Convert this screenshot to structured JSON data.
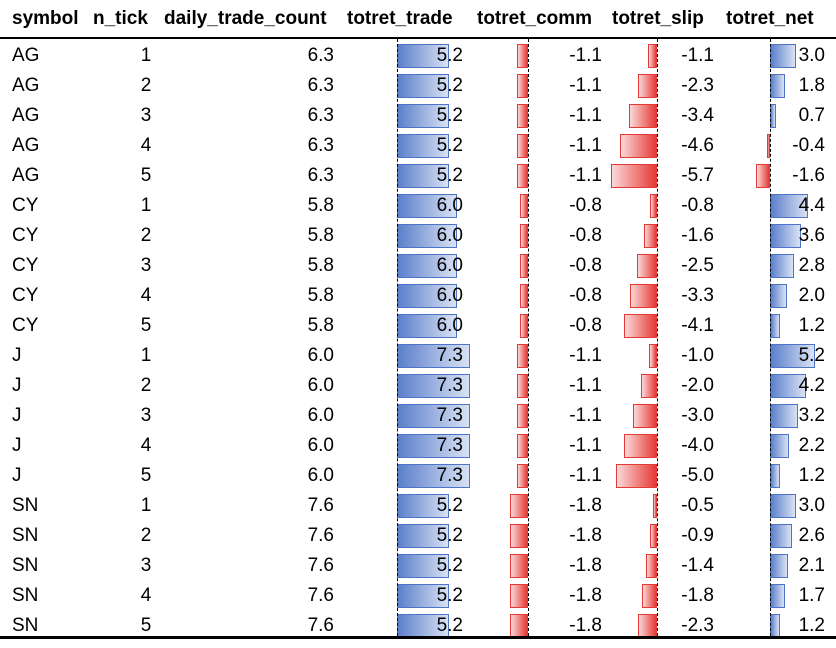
{
  "columns": [
    "symbol",
    "n_tick",
    "daily_trade_count",
    "totret_trade",
    "totret_comm",
    "totret_slip",
    "totret_net"
  ],
  "colors": {
    "positive_bar": "#5b7fcb",
    "negative_bar": "#e53935"
  },
  "chart_data": {
    "type": "table",
    "columns": [
      "symbol",
      "n_tick",
      "daily_trade_count",
      "totret_trade",
      "totret_comm",
      "totret_slip",
      "totret_net"
    ],
    "databar_columns": [
      "totret_trade",
      "totret_comm",
      "totret_slip",
      "totret_net"
    ],
    "rows": [
      {
        "symbol": "AG",
        "n_tick": 1,
        "daily_trade_count": "6.3",
        "totret_trade": "5.2",
        "totret_comm": "-1.1",
        "totret_slip": "-1.1",
        "totret_net": "3.0"
      },
      {
        "symbol": "AG",
        "n_tick": 2,
        "daily_trade_count": "6.3",
        "totret_trade": "5.2",
        "totret_comm": "-1.1",
        "totret_slip": "-2.3",
        "totret_net": "1.8"
      },
      {
        "symbol": "AG",
        "n_tick": 3,
        "daily_trade_count": "6.3",
        "totret_trade": "5.2",
        "totret_comm": "-1.1",
        "totret_slip": "-3.4",
        "totret_net": "0.7"
      },
      {
        "symbol": "AG",
        "n_tick": 4,
        "daily_trade_count": "6.3",
        "totret_trade": "5.2",
        "totret_comm": "-1.1",
        "totret_slip": "-4.6",
        "totret_net": "-0.4"
      },
      {
        "symbol": "AG",
        "n_tick": 5,
        "daily_trade_count": "6.3",
        "totret_trade": "5.2",
        "totret_comm": "-1.1",
        "totret_slip": "-5.7",
        "totret_net": "-1.6"
      },
      {
        "symbol": "CY",
        "n_tick": 1,
        "daily_trade_count": "5.8",
        "totret_trade": "6.0",
        "totret_comm": "-0.8",
        "totret_slip": "-0.8",
        "totret_net": "4.4"
      },
      {
        "symbol": "CY",
        "n_tick": 2,
        "daily_trade_count": "5.8",
        "totret_trade": "6.0",
        "totret_comm": "-0.8",
        "totret_slip": "-1.6",
        "totret_net": "3.6"
      },
      {
        "symbol": "CY",
        "n_tick": 3,
        "daily_trade_count": "5.8",
        "totret_trade": "6.0",
        "totret_comm": "-0.8",
        "totret_slip": "-2.5",
        "totret_net": "2.8"
      },
      {
        "symbol": "CY",
        "n_tick": 4,
        "daily_trade_count": "5.8",
        "totret_trade": "6.0",
        "totret_comm": "-0.8",
        "totret_slip": "-3.3",
        "totret_net": "2.0"
      },
      {
        "symbol": "CY",
        "n_tick": 5,
        "daily_trade_count": "5.8",
        "totret_trade": "6.0",
        "totret_comm": "-0.8",
        "totret_slip": "-4.1",
        "totret_net": "1.2"
      },
      {
        "symbol": "J",
        "n_tick": 1,
        "daily_trade_count": "6.0",
        "totret_trade": "7.3",
        "totret_comm": "-1.1",
        "totret_slip": "-1.0",
        "totret_net": "5.2"
      },
      {
        "symbol": "J",
        "n_tick": 2,
        "daily_trade_count": "6.0",
        "totret_trade": "7.3",
        "totret_comm": "-1.1",
        "totret_slip": "-2.0",
        "totret_net": "4.2"
      },
      {
        "symbol": "J",
        "n_tick": 3,
        "daily_trade_count": "6.0",
        "totret_trade": "7.3",
        "totret_comm": "-1.1",
        "totret_slip": "-3.0",
        "totret_net": "3.2"
      },
      {
        "symbol": "J",
        "n_tick": 4,
        "daily_trade_count": "6.0",
        "totret_trade": "7.3",
        "totret_comm": "-1.1",
        "totret_slip": "-4.0",
        "totret_net": "2.2"
      },
      {
        "symbol": "J",
        "n_tick": 5,
        "daily_trade_count": "6.0",
        "totret_trade": "7.3",
        "totret_comm": "-1.1",
        "totret_slip": "-5.0",
        "totret_net": "1.2"
      },
      {
        "symbol": "SN",
        "n_tick": 1,
        "daily_trade_count": "7.6",
        "totret_trade": "5.2",
        "totret_comm": "-1.8",
        "totret_slip": "-0.5",
        "totret_net": "3.0"
      },
      {
        "symbol": "SN",
        "n_tick": 2,
        "daily_trade_count": "7.6",
        "totret_trade": "5.2",
        "totret_comm": "-1.8",
        "totret_slip": "-0.9",
        "totret_net": "2.6"
      },
      {
        "symbol": "SN",
        "n_tick": 3,
        "daily_trade_count": "7.6",
        "totret_trade": "5.2",
        "totret_comm": "-1.8",
        "totret_slip": "-1.4",
        "totret_net": "2.1"
      },
      {
        "symbol": "SN",
        "n_tick": 4,
        "daily_trade_count": "7.6",
        "totret_trade": "5.2",
        "totret_comm": "-1.8",
        "totret_slip": "-1.8",
        "totret_net": "1.7"
      },
      {
        "symbol": "SN",
        "n_tick": 5,
        "daily_trade_count": "7.6",
        "totret_trade": "5.2",
        "totret_comm": "-1.8",
        "totret_slip": "-2.3",
        "totret_net": "1.2"
      }
    ]
  }
}
